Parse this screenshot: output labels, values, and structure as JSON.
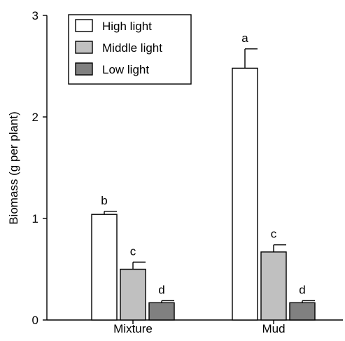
{
  "chart_data": {
    "type": "bar",
    "categories": [
      "Mixture",
      "Mud"
    ],
    "series": [
      {
        "name": "High light",
        "values": [
          1.04,
          2.48
        ],
        "errors": [
          0.03,
          0.19
        ],
        "letters": [
          "b",
          "a"
        ],
        "color": "#ffffff"
      },
      {
        "name": "Middle light",
        "values": [
          0.5,
          0.67
        ],
        "errors": [
          0.07,
          0.07
        ],
        "letters": [
          "c",
          "c"
        ],
        "color": "#c0c0c0"
      },
      {
        "name": "Low light",
        "values": [
          0.17,
          0.17
        ],
        "errors": [
          0.02,
          0.02
        ],
        "letters": [
          "d",
          "d"
        ],
        "color": "#808080"
      }
    ],
    "ylabel": "Biomass (g per plant)",
    "xlabel": "",
    "ylim": [
      0,
      3
    ],
    "yticks": [
      "0",
      "1",
      "2",
      "3"
    ],
    "legend": "top-left",
    "grid": false
  }
}
